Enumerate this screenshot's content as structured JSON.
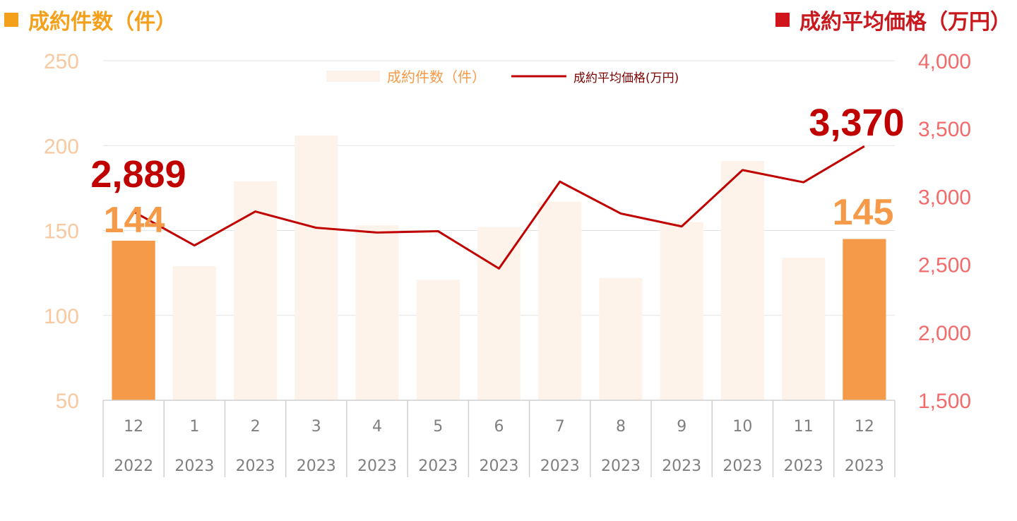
{
  "headers": {
    "left": "成約件数（件）",
    "right": "成約平均価格（万円）"
  },
  "chart_data": {
    "type": "bar+line",
    "categories": [
      [
        "12",
        "2022"
      ],
      [
        "1",
        "2023"
      ],
      [
        "2",
        "2023"
      ],
      [
        "3",
        "2023"
      ],
      [
        "4",
        "2023"
      ],
      [
        "5",
        "2023"
      ],
      [
        "6",
        "2023"
      ],
      [
        "7",
        "2023"
      ],
      [
        "8",
        "2023"
      ],
      [
        "9",
        "2023"
      ],
      [
        "10",
        "2023"
      ],
      [
        "11",
        "2023"
      ],
      [
        "12",
        "2023"
      ]
    ],
    "series": [
      {
        "name": "成約件数（件）",
        "type": "bar",
        "axis": "left",
        "values": [
          144,
          129,
          179,
          206,
          153,
          121,
          152,
          167,
          122,
          155,
          191,
          134,
          145
        ],
        "highlight": [
          0,
          12
        ],
        "color": "#fdf3ea",
        "highlight_color": "#f59a48"
      },
      {
        "name": "成約平均価格(万円)",
        "type": "line",
        "axis": "right",
        "values": [
          2889,
          2640,
          2890,
          2770,
          2735,
          2745,
          2470,
          3110,
          2875,
          2780,
          3195,
          3105,
          3370
        ],
        "color": "#c00000"
      }
    ],
    "y_left": {
      "lim": [
        50,
        250
      ],
      "ticks": [
        "50",
        "100",
        "150",
        "200",
        "250"
      ],
      "color": "#f8c9a0"
    },
    "y_right": {
      "lim": [
        1500,
        4000
      ],
      "ticks": [
        "1,500",
        "2,000",
        "2,500",
        "3,000",
        "3,500",
        "4,000"
      ],
      "color": "#f26b6b"
    },
    "annotations": [
      {
        "text": "2,889",
        "series": 1,
        "index": 0,
        "color": "#c00000"
      },
      {
        "text": "3,370",
        "series": 1,
        "index": 12,
        "color": "#c00000"
      },
      {
        "text": "144",
        "series": 0,
        "index": 0,
        "color": "#f59a48"
      },
      {
        "text": "145",
        "series": 0,
        "index": 12,
        "color": "#f59a48"
      }
    ],
    "legend": {
      "position": "top-center"
    },
    "grid": true
  }
}
